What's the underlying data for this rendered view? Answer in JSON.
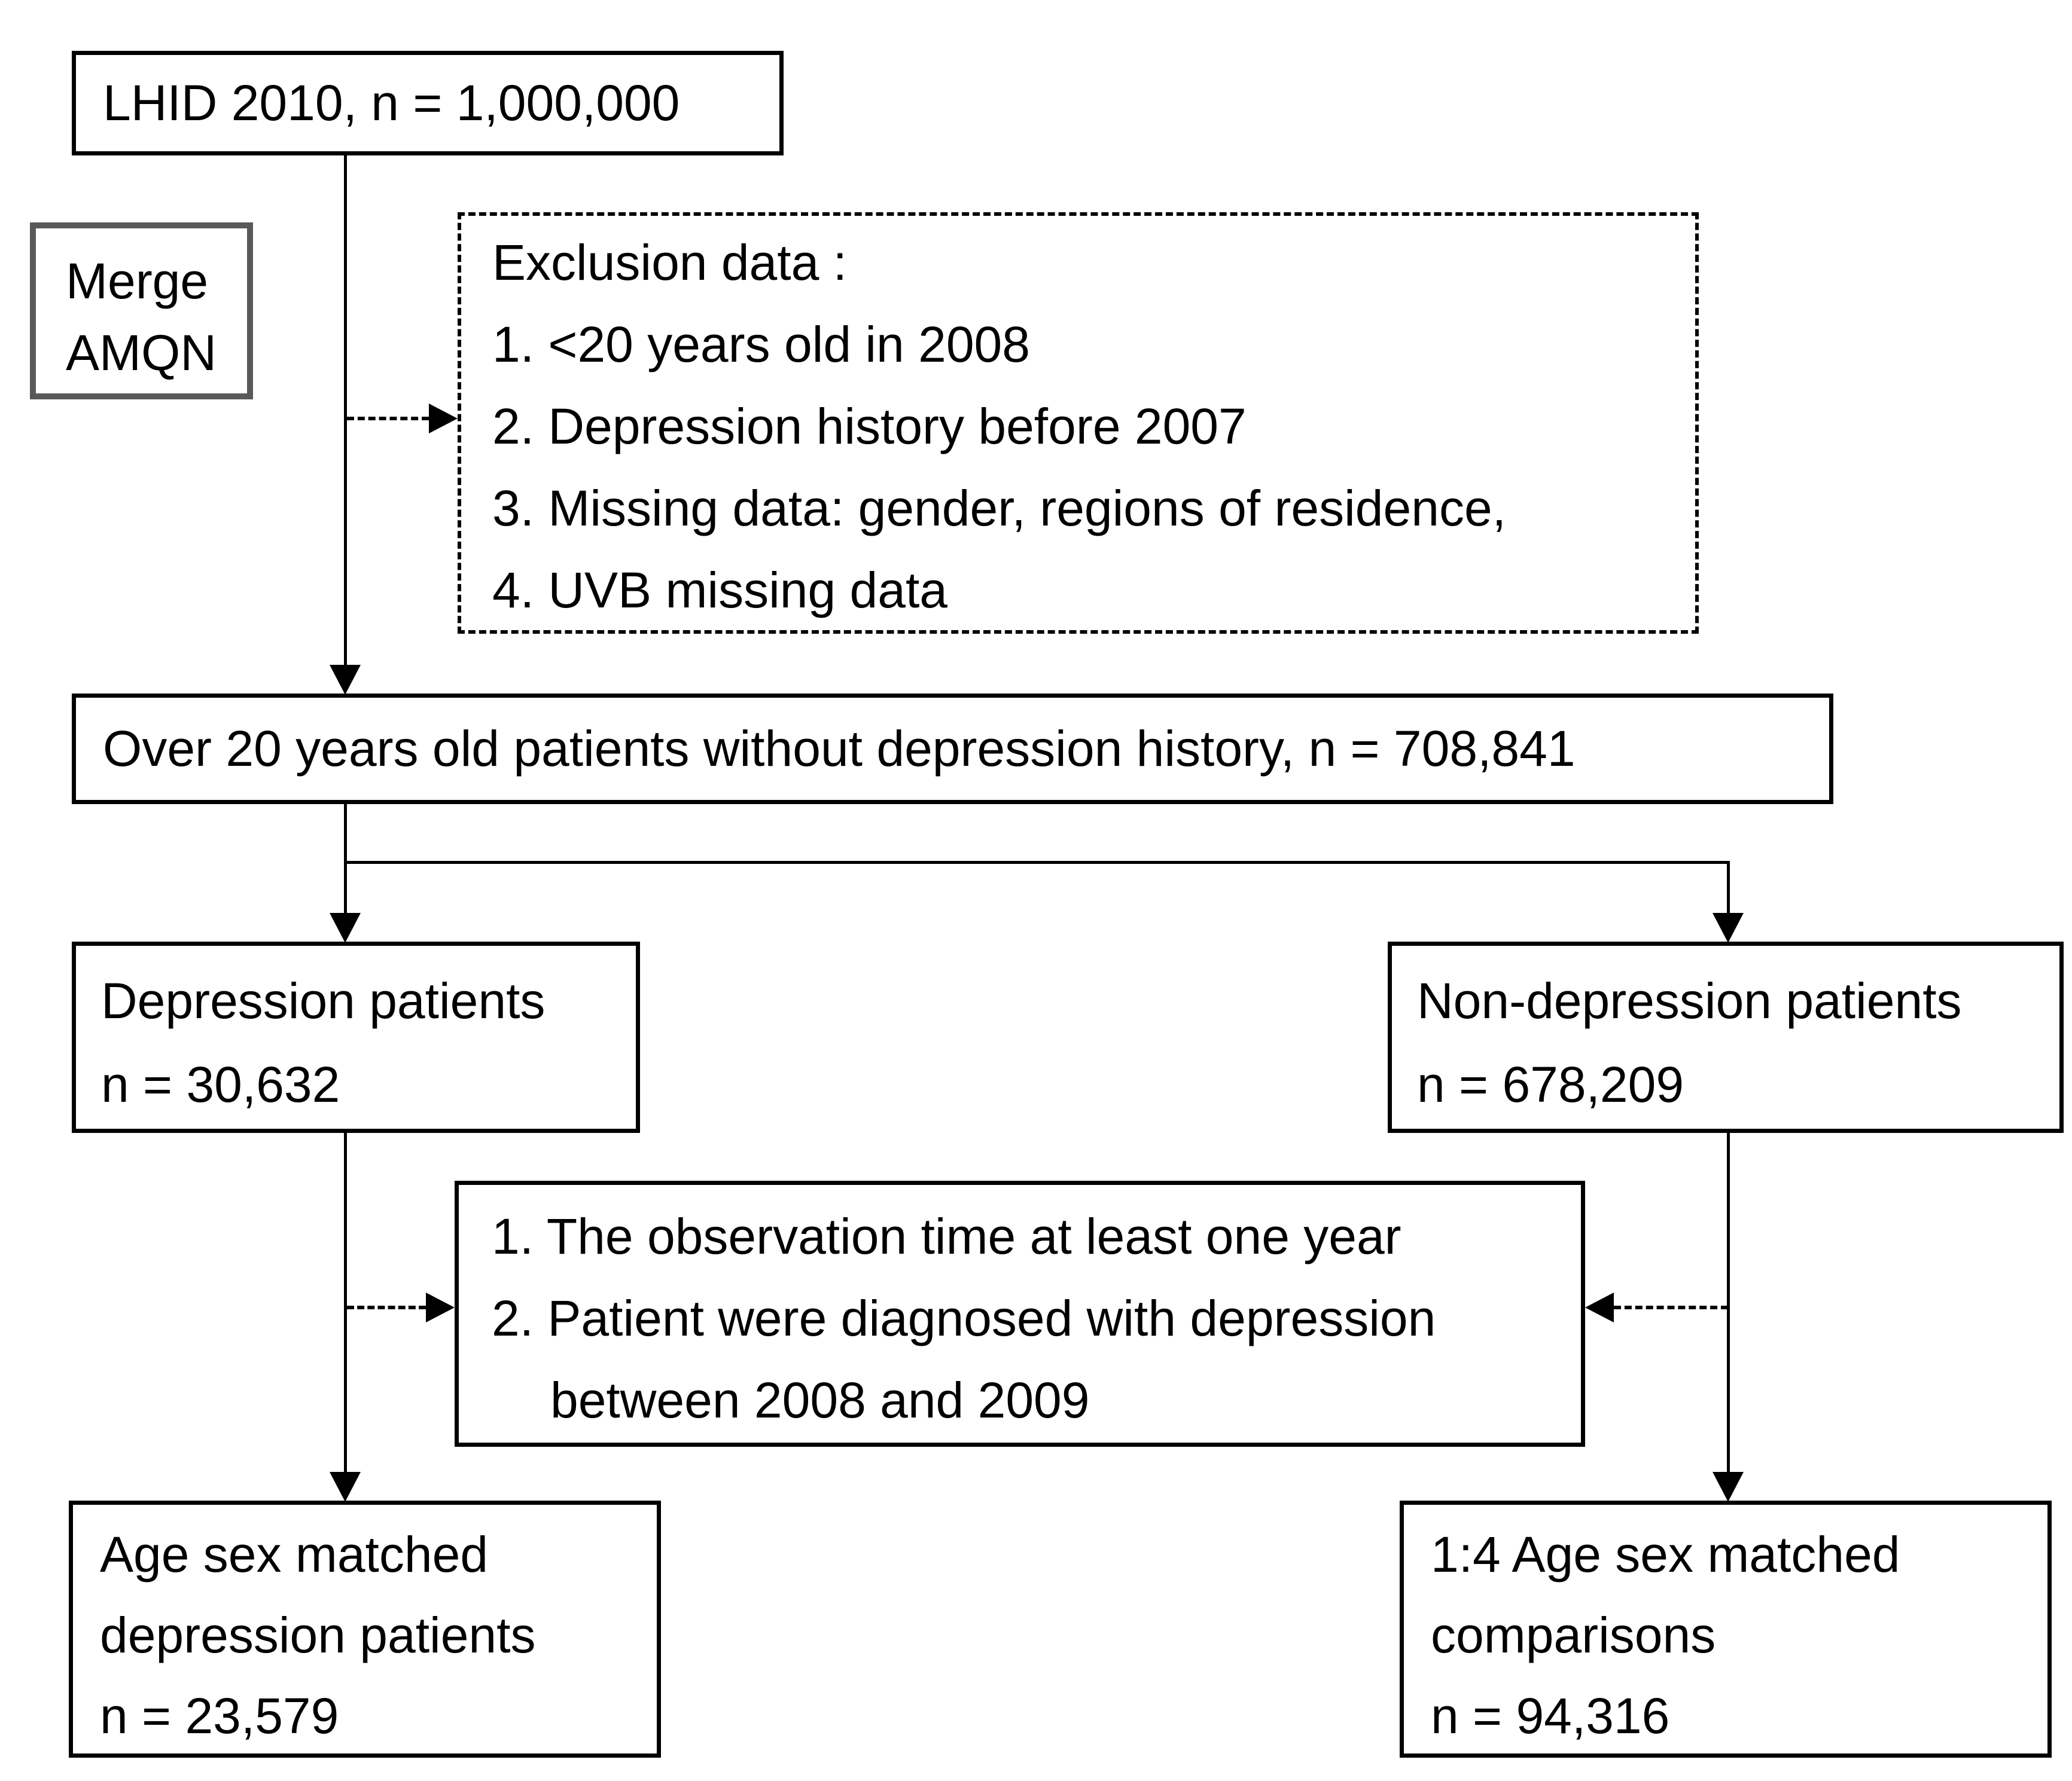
{
  "figure": {
    "background_color": "#ffffff",
    "text_color": "#000000",
    "box_border_color": "#000000",
    "merge_box_border_color": "#595959"
  },
  "nodes": {
    "lhid": {
      "text": "LHID 2010, n = 1,000,000"
    },
    "merge": {
      "lines": [
        "Merge",
        "AMQN"
      ]
    },
    "exclusion": {
      "lines": [
        "Exclusion data :",
        "1. <20 years old in 2008",
        "2. Depression history before 2007",
        "3. Missing data: gender, regions of residence,",
        "4. UVB missing data"
      ]
    },
    "over20": {
      "text": "Over 20 years old patients without depression history, n = 708,841"
    },
    "depression": {
      "lines": [
        "Depression patients",
        "n = 30,632"
      ]
    },
    "non_depression": {
      "lines": [
        "Non-depression patients",
        "n = 678,209"
      ]
    },
    "criteria": {
      "lines": [
        "1. The observation time at least one year",
        "2. Patient were diagnosed with depression",
        "between 2008 and 2009"
      ]
    },
    "matched_depression": {
      "lines": [
        "Age sex matched",
        "depression patients",
        "n = 23,579"
      ]
    },
    "matched_comparisons": {
      "lines": [
        "1:4 Age sex matched",
        "comparisons",
        "n = 94,316"
      ]
    }
  }
}
